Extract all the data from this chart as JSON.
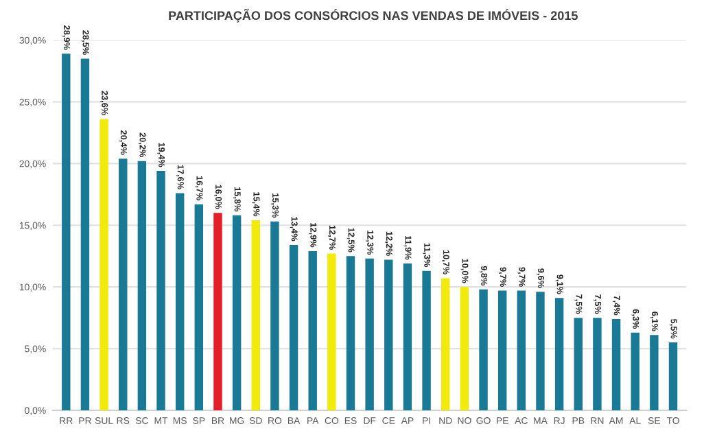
{
  "chart_data": {
    "type": "bar",
    "title": "PARTICIPAÇÃO DOS CONSÓRCIOS NAS VENDAS DE IMÓVEIS - 2015",
    "categories": [
      "RR",
      "PR",
      "SUL",
      "RS",
      "SC",
      "MT",
      "MS",
      "SP",
      "BR",
      "MG",
      "SD",
      "RO",
      "BA",
      "PA",
      "CO",
      "ES",
      "DF",
      "CE",
      "AP",
      "PI",
      "ND",
      "NO",
      "GO",
      "PE",
      "AC",
      "MA",
      "RJ",
      "PB",
      "RN",
      "AM",
      "AL",
      "SE",
      "TO"
    ],
    "values": [
      28.9,
      28.5,
      23.6,
      20.4,
      20.2,
      19.4,
      17.6,
      16.7,
      16.0,
      15.8,
      15.4,
      15.3,
      13.4,
      12.9,
      12.7,
      12.5,
      12.3,
      12.2,
      11.9,
      11.3,
      10.7,
      10.0,
      9.8,
      9.7,
      9.7,
      9.6,
      9.1,
      7.5,
      7.5,
      7.4,
      6.3,
      6.1,
      5.5
    ],
    "value_labels": [
      "28,9%",
      "28,5%",
      "23,6%",
      "20,4%",
      "20,2%",
      "19,4%",
      "17,6%",
      "16,7%",
      "16,0%",
      "15,8%",
      "15,4%",
      "15,3%",
      "13,4%",
      "12,9%",
      "12,7%",
      "12,5%",
      "12,3%",
      "12,2%",
      "11,9%",
      "11,3%",
      "10,7%",
      "10,0%",
      "9,8%",
      "9,7%",
      "9,7%",
      "9,6%",
      "9,1%",
      "7,5%",
      "7,5%",
      "7,4%",
      "6,3%",
      "6,1%",
      "5,5%"
    ],
    "colors": [
      "#1a7a96",
      "#1a7a96",
      "#f2ea0c",
      "#1a7a96",
      "#1a7a96",
      "#1a7a96",
      "#1a7a96",
      "#1a7a96",
      "#e3202a",
      "#1a7a96",
      "#f2ea0c",
      "#1a7a96",
      "#1a7a96",
      "#1a7a96",
      "#f2ea0c",
      "#1a7a96",
      "#1a7a96",
      "#1a7a96",
      "#1a7a96",
      "#1a7a96",
      "#f2ea0c",
      "#f2ea0c",
      "#1a7a96",
      "#1a7a96",
      "#1a7a96",
      "#1a7a96",
      "#1a7a96",
      "#1a7a96",
      "#1a7a96",
      "#1a7a96",
      "#1a7a96",
      "#1a7a96",
      "#1a7a96"
    ],
    "ylim": [
      0,
      30
    ],
    "yticks": [
      {
        "value": 0,
        "label": "0,0%"
      },
      {
        "value": 5,
        "label": "5,0%"
      },
      {
        "value": 10,
        "label": "10,0%"
      },
      {
        "value": 15,
        "label": "15,0%"
      },
      {
        "value": 20,
        "label": "20,0%"
      },
      {
        "value": 25,
        "label": "25,0%"
      },
      {
        "value": 30,
        "label": "30,0%"
      }
    ],
    "grid": "y"
  }
}
